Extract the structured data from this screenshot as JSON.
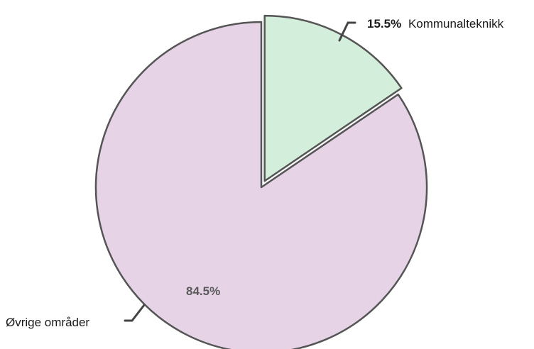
{
  "chart_data": {
    "type": "pie",
    "title": "",
    "slices": [
      {
        "label": "Kommunalteknikk",
        "value": 15.5,
        "percent_text": "15.5%",
        "color": "#d4eedc",
        "exploded": true,
        "label_position": "outside-top-right",
        "percent_bold": true
      },
      {
        "label": "Øvrige områder",
        "value": 84.5,
        "percent_text": "84.5%",
        "color": "#e6d4e6",
        "exploded": false,
        "label_position": "outside-bottom-left",
        "percent_inside": true
      }
    ],
    "start_angle_deg": 0,
    "direction": "clockwise",
    "stroke_color": "#555555",
    "leader_color": "#444444",
    "legend": "none"
  }
}
